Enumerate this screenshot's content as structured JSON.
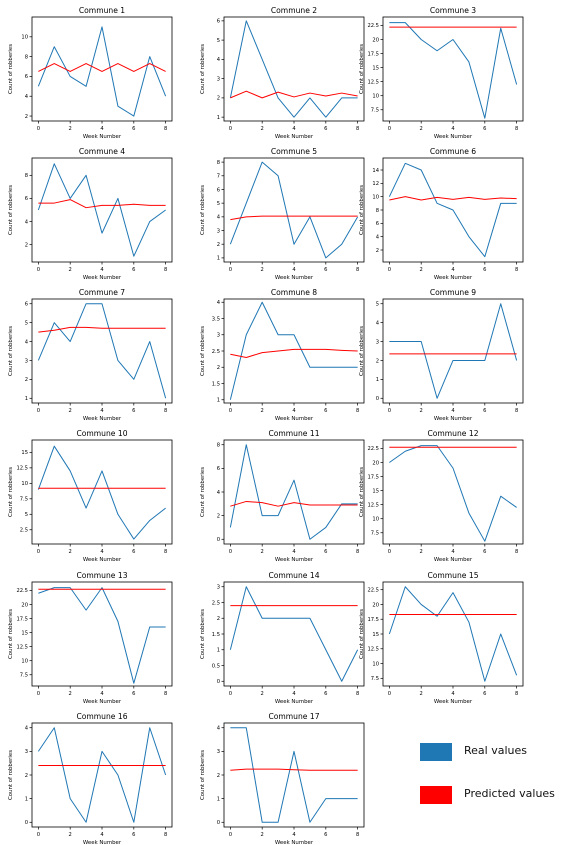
{
  "figure": {
    "xlabel": "Week Number",
    "ylabel": "Count of robberies",
    "colors": {
      "real": "#1f77b4",
      "predicted": "#ff0000"
    }
  },
  "legend": {
    "real_label": "Real values",
    "predicted_label": "Predicted values"
  },
  "chart_data": [
    {
      "type": "line",
      "title": "Commune 1",
      "x": [
        0,
        1,
        2,
        3,
        4,
        5,
        6,
        7,
        8
      ],
      "xticks": [
        0,
        2,
        4,
        6,
        8
      ],
      "ylim": [
        1.5,
        12
      ],
      "yticks": [
        2,
        4,
        6,
        8,
        10
      ],
      "series": [
        {
          "name": "Real values",
          "values": [
            5,
            9,
            6,
            5,
            11,
            3,
            2,
            8,
            4
          ]
        },
        {
          "name": "Predicted values",
          "values": [
            6.5,
            7.3,
            6.5,
            7.3,
            6.5,
            7.3,
            6.5,
            7.3,
            6.5
          ]
        }
      ]
    },
    {
      "type": "line",
      "title": "Commune 2",
      "x": [
        0,
        1,
        2,
        3,
        4,
        5,
        6,
        7,
        8
      ],
      "xticks": [
        0,
        2,
        4,
        6,
        8
      ],
      "ylim": [
        0.8,
        6.2
      ],
      "yticks": [
        1,
        2,
        3,
        4,
        5,
        6
      ],
      "series": [
        {
          "name": "Real values",
          "values": [
            2,
            6,
            4,
            2,
            1,
            2,
            1,
            2,
            2
          ]
        },
        {
          "name": "Predicted values",
          "values": [
            2.0,
            2.35,
            2.0,
            2.3,
            2.05,
            2.25,
            2.1,
            2.25,
            2.1
          ]
        }
      ]
    },
    {
      "type": "line",
      "title": "Commune 3",
      "x": [
        0,
        1,
        2,
        3,
        4,
        5,
        6,
        7,
        8
      ],
      "xticks": [
        0,
        2,
        4,
        6,
        8
      ],
      "ylim": [
        5.5,
        24
      ],
      "yticks": [
        7.5,
        10.0,
        12.5,
        15.0,
        17.5,
        20.0,
        22.5
      ],
      "series": [
        {
          "name": "Real values",
          "values": [
            23,
            23,
            20,
            18,
            20,
            16,
            6,
            22,
            12
          ]
        },
        {
          "name": "Predicted values",
          "values": [
            22.2,
            22.2,
            22.2,
            22.2,
            22.2,
            22.2,
            22.2,
            22.2,
            22.2
          ]
        }
      ]
    },
    {
      "type": "line",
      "title": "Commune 4",
      "x": [
        0,
        1,
        2,
        3,
        4,
        5,
        6,
        7,
        8
      ],
      "xticks": [
        0,
        2,
        4,
        6,
        8
      ],
      "ylim": [
        0.5,
        9.5
      ],
      "yticks": [
        2,
        4,
        6,
        8
      ],
      "series": [
        {
          "name": "Real values",
          "values": [
            5,
            9,
            6,
            8,
            3,
            6,
            1,
            4,
            5
          ]
        },
        {
          "name": "Predicted values",
          "values": [
            5.6,
            5.6,
            5.9,
            5.2,
            5.4,
            5.4,
            5.5,
            5.4,
            5.4
          ]
        }
      ]
    },
    {
      "type": "line",
      "title": "Commune 5",
      "x": [
        0,
        1,
        2,
        3,
        4,
        5,
        6,
        7,
        8
      ],
      "xticks": [
        0,
        2,
        4,
        6,
        8
      ],
      "ylim": [
        0.7,
        8.3
      ],
      "yticks": [
        1,
        2,
        3,
        4,
        5,
        6,
        7,
        8
      ],
      "series": [
        {
          "name": "Real values",
          "values": [
            2,
            5,
            8,
            7,
            2,
            4,
            1,
            2,
            4
          ]
        },
        {
          "name": "Predicted values",
          "values": [
            3.8,
            4.0,
            4.05,
            4.05,
            4.05,
            4.05,
            4.05,
            4.05,
            4.05
          ]
        }
      ]
    },
    {
      "type": "line",
      "title": "Commune 6",
      "x": [
        0,
        1,
        2,
        3,
        4,
        5,
        6,
        7,
        8
      ],
      "xticks": [
        0,
        2,
        4,
        6,
        8
      ],
      "ylim": [
        0.2,
        15.8
      ],
      "yticks": [
        2,
        4,
        6,
        8,
        10,
        12,
        14
      ],
      "series": [
        {
          "name": "Real values",
          "values": [
            10,
            15,
            14,
            9,
            8,
            4,
            1,
            9,
            9
          ]
        },
        {
          "name": "Predicted values",
          "values": [
            9.5,
            10.0,
            9.5,
            9.9,
            9.6,
            9.9,
            9.6,
            9.8,
            9.7
          ]
        }
      ]
    },
    {
      "type": "line",
      "title": "Commune 7",
      "x": [
        0,
        1,
        2,
        3,
        4,
        5,
        6,
        7,
        8
      ],
      "xticks": [
        0,
        2,
        4,
        6,
        8
      ],
      "ylim": [
        0.75,
        6.25
      ],
      "yticks": [
        1,
        2,
        3,
        4,
        5,
        6
      ],
      "series": [
        {
          "name": "Real values",
          "values": [
            3,
            5,
            4,
            6,
            6,
            3,
            2,
            4,
            1
          ]
        },
        {
          "name": "Predicted values",
          "values": [
            4.5,
            4.6,
            4.75,
            4.75,
            4.7,
            4.7,
            4.7,
            4.7,
            4.7
          ]
        }
      ]
    },
    {
      "type": "line",
      "title": "Commune 8",
      "x": [
        0,
        1,
        2,
        3,
        4,
        5,
        6,
        7,
        8
      ],
      "xticks": [
        0,
        2,
        4,
        6,
        8
      ],
      "ylim": [
        0.9,
        4.1
      ],
      "yticks": [
        1.0,
        1.5,
        2.0,
        2.5,
        3.0,
        3.5,
        4.0
      ],
      "series": [
        {
          "name": "Real values",
          "values": [
            1,
            3,
            4,
            3,
            3,
            2,
            2,
            2,
            2
          ]
        },
        {
          "name": "Predicted values",
          "values": [
            2.4,
            2.3,
            2.45,
            2.5,
            2.55,
            2.55,
            2.55,
            2.52,
            2.5
          ]
        }
      ]
    },
    {
      "type": "line",
      "title": "Commune 9",
      "x": [
        0,
        1,
        2,
        3,
        4,
        5,
        6,
        7,
        8
      ],
      "xticks": [
        0,
        2,
        4,
        6,
        8
      ],
      "ylim": [
        -0.25,
        5.25
      ],
      "yticks": [
        0,
        1,
        2,
        3,
        4,
        5
      ],
      "series": [
        {
          "name": "Real values",
          "values": [
            3,
            3,
            3,
            0,
            2,
            2,
            2,
            5,
            2
          ]
        },
        {
          "name": "Predicted values",
          "values": [
            2.35,
            2.35,
            2.35,
            2.35,
            2.35,
            2.35,
            2.35,
            2.35,
            2.35
          ]
        }
      ]
    },
    {
      "type": "line",
      "title": "Commune 10",
      "x": [
        0,
        1,
        2,
        3,
        4,
        5,
        6,
        7,
        8
      ],
      "xticks": [
        0,
        2,
        4,
        6,
        8
      ],
      "ylim": [
        0.2,
        17
      ],
      "yticks": [
        2.5,
        5.0,
        7.5,
        10.0,
        12.5,
        15.0
      ],
      "series": [
        {
          "name": "Real values",
          "values": [
            9,
            16,
            12,
            6,
            12,
            5,
            1,
            4,
            6
          ]
        },
        {
          "name": "Predicted values",
          "values": [
            9.2,
            9.2,
            9.2,
            9.2,
            9.2,
            9.2,
            9.2,
            9.2,
            9.2
          ]
        }
      ]
    },
    {
      "type": "line",
      "title": "Commune 11",
      "x": [
        0,
        1,
        2,
        3,
        4,
        5,
        6,
        7,
        8
      ],
      "xticks": [
        0,
        2,
        4,
        6,
        8
      ],
      "ylim": [
        -0.4,
        8.4
      ],
      "yticks": [
        0,
        2,
        4,
        6,
        8
      ],
      "series": [
        {
          "name": "Real values",
          "values": [
            1,
            8,
            2,
            2,
            5,
            0,
            1,
            3,
            3
          ]
        },
        {
          "name": "Predicted values",
          "values": [
            2.8,
            3.2,
            3.1,
            2.8,
            3.1,
            2.9,
            2.9,
            2.9,
            2.9
          ]
        }
      ]
    },
    {
      "type": "line",
      "title": "Commune 12",
      "x": [
        0,
        1,
        2,
        3,
        4,
        5,
        6,
        7,
        8
      ],
      "xticks": [
        0,
        2,
        4,
        6,
        8
      ],
      "ylim": [
        5.5,
        24
      ],
      "yticks": [
        7.5,
        10.0,
        12.5,
        15.0,
        17.5,
        20.0,
        22.5
      ],
      "series": [
        {
          "name": "Real values",
          "values": [
            20,
            22,
            23,
            23,
            19,
            11,
            6,
            14,
            12
          ]
        },
        {
          "name": "Predicted values",
          "values": [
            22.7,
            22.7,
            22.7,
            22.7,
            22.7,
            22.7,
            22.7,
            22.7,
            22.7
          ]
        }
      ]
    },
    {
      "type": "line",
      "title": "Commune 13",
      "x": [
        0,
        1,
        2,
        3,
        4,
        5,
        6,
        7,
        8
      ],
      "xticks": [
        0,
        2,
        4,
        6,
        8
      ],
      "ylim": [
        5.5,
        24
      ],
      "yticks": [
        7.5,
        10.0,
        12.5,
        15.0,
        17.5,
        20.0,
        22.5
      ],
      "series": [
        {
          "name": "Real values",
          "values": [
            22,
            23,
            23,
            19,
            23,
            17,
            6,
            16,
            16
          ]
        },
        {
          "name": "Predicted values",
          "values": [
            22.7,
            22.7,
            22.7,
            22.7,
            22.7,
            22.7,
            22.7,
            22.7,
            22.7
          ]
        }
      ]
    },
    {
      "type": "line",
      "title": "Commune 14",
      "x": [
        0,
        1,
        2,
        3,
        4,
        5,
        6,
        7,
        8
      ],
      "xticks": [
        0,
        2,
        4,
        6,
        8
      ],
      "ylim": [
        -0.15,
        3.15
      ],
      "yticks": [
        0.0,
        0.5,
        1.0,
        1.5,
        2.0,
        2.5,
        3.0
      ],
      "series": [
        {
          "name": "Real values",
          "values": [
            1,
            3,
            2,
            2,
            2,
            2,
            1,
            0,
            1
          ]
        },
        {
          "name": "Predicted values",
          "values": [
            2.4,
            2.4,
            2.4,
            2.4,
            2.4,
            2.4,
            2.4,
            2.4,
            2.4
          ]
        }
      ]
    },
    {
      "type": "line",
      "title": "Commune 15",
      "x": [
        0,
        1,
        2,
        3,
        4,
        5,
        6,
        7,
        8
      ],
      "xticks": [
        0,
        2,
        4,
        6,
        8
      ],
      "ylim": [
        6.2,
        23.8
      ],
      "yticks": [
        7.5,
        10.0,
        12.5,
        15.0,
        17.5,
        20.0,
        22.5
      ],
      "series": [
        {
          "name": "Real values",
          "values": [
            15,
            23,
            20,
            18,
            22,
            17,
            7,
            15,
            8
          ]
        },
        {
          "name": "Predicted values",
          "values": [
            18.3,
            18.3,
            18.3,
            18.3,
            18.3,
            18.3,
            18.3,
            18.3,
            18.3
          ]
        }
      ]
    },
    {
      "type": "line",
      "title": "Commune 16",
      "x": [
        0,
        1,
        2,
        3,
        4,
        5,
        6,
        7,
        8
      ],
      "xticks": [
        0,
        2,
        4,
        6,
        8
      ],
      "ylim": [
        -0.2,
        4.2
      ],
      "yticks": [
        0,
        1,
        2,
        3,
        4
      ],
      "series": [
        {
          "name": "Real values",
          "values": [
            3,
            4,
            1,
            0,
            3,
            2,
            0,
            4,
            2
          ]
        },
        {
          "name": "Predicted values",
          "values": [
            2.4,
            2.4,
            2.4,
            2.4,
            2.4,
            2.4,
            2.4,
            2.4,
            2.4
          ]
        }
      ]
    },
    {
      "type": "line",
      "title": "Commune 17",
      "x": [
        0,
        1,
        2,
        3,
        4,
        5,
        6,
        7,
        8
      ],
      "xticks": [
        0,
        2,
        4,
        6,
        8
      ],
      "ylim": [
        -0.2,
        4.2
      ],
      "yticks": [
        0,
        1,
        2,
        3,
        4
      ],
      "series": [
        {
          "name": "Real values",
          "values": [
            4,
            4,
            0,
            0,
            3,
            0,
            1,
            1,
            1
          ]
        },
        {
          "name": "Predicted values",
          "values": [
            2.2,
            2.25,
            2.25,
            2.25,
            2.22,
            2.2,
            2.2,
            2.2,
            2.2
          ]
        }
      ]
    }
  ]
}
